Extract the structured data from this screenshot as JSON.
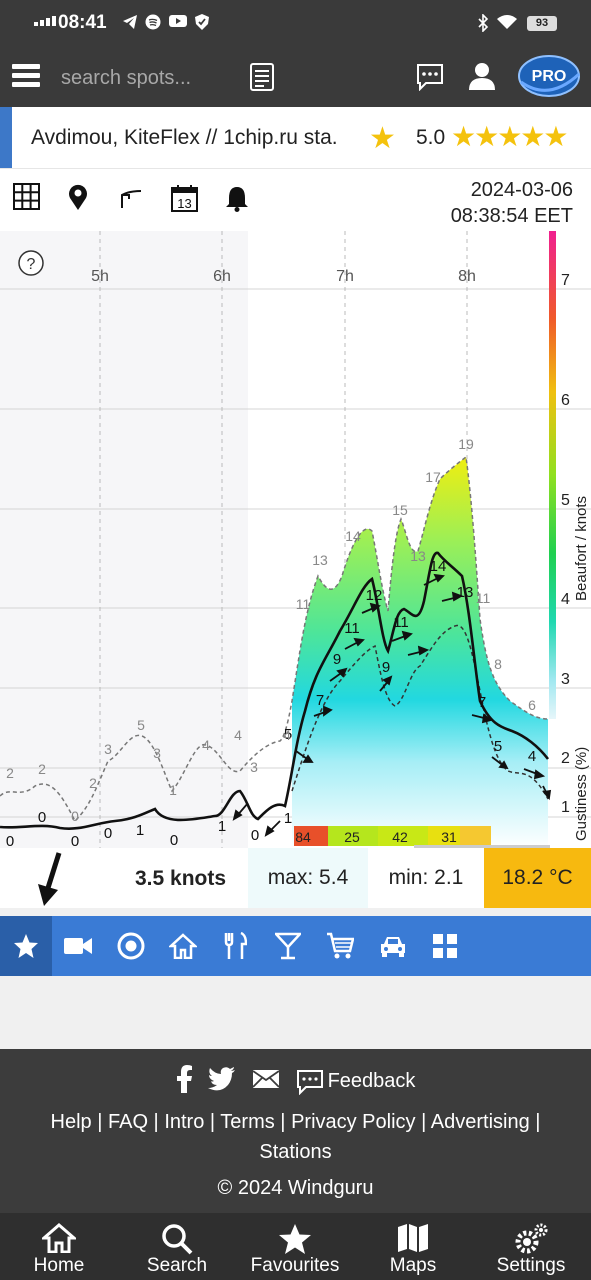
{
  "status_bar": {
    "time": "08:41",
    "battery": "93"
  },
  "nav": {
    "search_placeholder": "search spots...",
    "pro_label": "PRO"
  },
  "spot": {
    "name": "Avdimou, KiteFlex // 1chip.ru sta.",
    "rating": "5.0"
  },
  "toolbar": {
    "date": "2024-03-06",
    "time": "08:38:54 EET",
    "calendar_day": "13"
  },
  "chart_data": {
    "type": "area",
    "title": "",
    "x_ticks": [
      "5h",
      "6h",
      "7h",
      "8h"
    ],
    "y_right_label": "Beaufort / knots",
    "y_right_label2": "Gustiness (%)",
    "beaufort_ticks": [
      "7",
      "6",
      "5",
      "4",
      "3",
      "2",
      "1"
    ],
    "help_label": "?",
    "series": [
      {
        "name": "wind",
        "labels": [
          "0",
          "0",
          "0",
          "0",
          "1",
          "0",
          "1",
          "0",
          "1",
          "5",
          "7",
          "9",
          "11",
          "12",
          "9",
          "11",
          "14",
          "13",
          "7",
          "5",
          "4"
        ]
      },
      {
        "name": "gust",
        "labels": [
          "2",
          "2",
          "0",
          "2",
          "3",
          "5",
          "3",
          "1",
          "4",
          "4",
          "3",
          "4",
          "11",
          "13",
          "14",
          "15",
          "13",
          "17",
          "19",
          "11",
          "8",
          "6"
        ]
      }
    ],
    "gustiness_bars": [
      {
        "value": "84",
        "color": "#e8502a"
      },
      {
        "value": "25",
        "color": "#b5e61d"
      },
      {
        "value": "42",
        "color": "#c8e816"
      },
      {
        "value": "31",
        "color": "#e8e010"
      }
    ]
  },
  "stats": {
    "current": "3.5 knots",
    "max": "max: 5.4",
    "min": "min: 2.1",
    "temp": "18.2 °C"
  },
  "categories": [
    "favourites-star",
    "webcam",
    "target",
    "home",
    "restaurant",
    "bar",
    "shop",
    "car",
    "apps"
  ],
  "footer": {
    "feedback": "Feedback",
    "links": [
      "Help",
      "FAQ",
      "Intro",
      "Terms",
      "Privacy Policy",
      "Advertising",
      "Stations"
    ],
    "copyright": "© 2024 Windguru"
  },
  "tabs": [
    {
      "label": "Home"
    },
    {
      "label": "Search"
    },
    {
      "label": "Favourites"
    },
    {
      "label": "Maps"
    },
    {
      "label": "Settings"
    }
  ],
  "colors": {
    "accent": "#3a7bd5",
    "header": "#3a3a3a",
    "temp": "#f7b90f",
    "star": "#f4c20d"
  }
}
